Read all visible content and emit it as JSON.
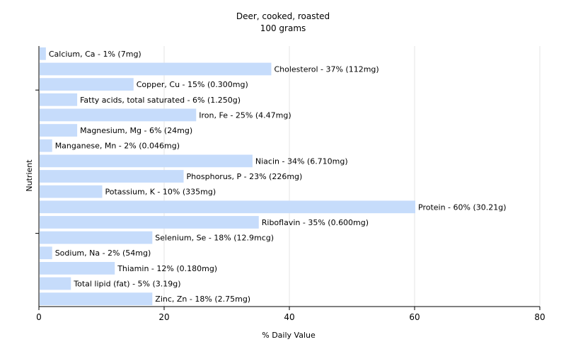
{
  "chart_data": {
    "type": "bar",
    "orientation": "horizontal",
    "title": "Deer, cooked, roasted",
    "subtitle": "100 grams",
    "xlabel": "% Daily Value",
    "ylabel": "Nutrient",
    "xlim": [
      0,
      80
    ],
    "xticks": [
      0,
      20,
      40,
      60,
      80
    ],
    "grid": true,
    "bar_color": "#c6dcfb",
    "categories": [
      "Calcium, Ca",
      "Cholesterol",
      "Copper, Cu",
      "Fatty acids, total saturated",
      "Iron, Fe",
      "Magnesium, Mg",
      "Manganese, Mn",
      "Niacin",
      "Phosphorus, P",
      "Potassium, K",
      "Protein",
      "Riboflavin",
      "Selenium, Se",
      "Sodium, Na",
      "Thiamin",
      "Total lipid (fat)",
      "Zinc, Zn"
    ],
    "values": [
      1,
      37,
      15,
      6,
      25,
      6,
      2,
      34,
      23,
      10,
      60,
      35,
      18,
      2,
      12,
      5,
      18
    ],
    "labels": [
      "Calcium, Ca - 1% (7mg)",
      "Cholesterol - 37% (112mg)",
      "Copper, Cu - 15% (0.300mg)",
      "Fatty acids, total saturated - 6% (1.250g)",
      "Iron, Fe - 25% (4.47mg)",
      "Magnesium, Mg - 6% (24mg)",
      "Manganese, Mn - 2% (0.046mg)",
      "Niacin - 34% (6.710mg)",
      "Phosphorus, P - 23% (226mg)",
      "Potassium, K - 10% (335mg)",
      "Protein - 60% (30.21g)",
      "Riboflavin - 35% (0.600mg)",
      "Selenium, Se - 18% (12.9mcg)",
      "Sodium, Na - 2% (54mg)",
      "Thiamin - 12% (0.180mg)",
      "Total lipid (fat) - 5% (3.19g)",
      "Zinc, Zn - 18% (2.75mg)"
    ]
  }
}
